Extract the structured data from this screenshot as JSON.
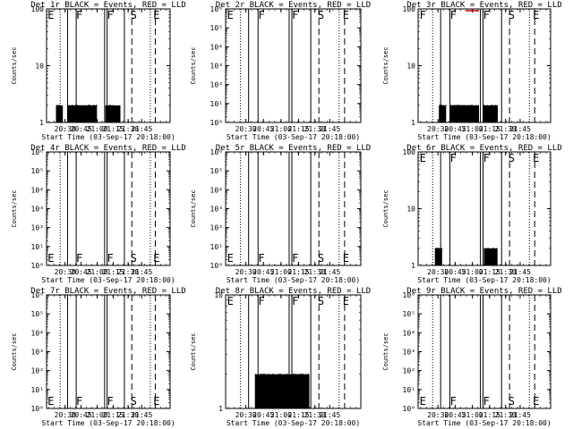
{
  "figure": {
    "description": "RHESSI detector count rates, 3x3 grid"
  },
  "chart_data": [
    {
      "type": "line",
      "title": "Det 1r BLACK = Events, RED = LLD",
      "xlabel": "Start Time (03-Sep-17 20:18:00)",
      "ylabel": "Counts/sec",
      "x_ticks": [
        "20:30",
        "20:45",
        "21:00",
        "21:15",
        "21:30",
        "21:45"
      ],
      "y_scale": "log",
      "ylim": [
        1,
        100
      ],
      "y_ticks": [
        "1",
        "10",
        "100"
      ],
      "flags": [
        "E",
        "F",
        "F",
        "S",
        "E"
      ],
      "events_level": 2,
      "events_segments": [
        [
          0.08,
          0.13
        ],
        [
          0.17,
          0.41
        ],
        [
          0.48,
          0.6
        ]
      ],
      "lld_visible": false
    },
    {
      "type": "line",
      "title": "Det 2r BLACK = Events, RED = LLD",
      "xlabel": "Start Time (03-Sep-17 20:18:00)",
      "ylabel": "Counts/sec",
      "x_ticks": [
        "20:30",
        "20:45",
        "21:00",
        "21:15",
        "21:30",
        "21:45"
      ],
      "y_scale": "log",
      "ylim": [
        1,
        1000000
      ],
      "y_ticks": [
        "10⁰",
        "10¹",
        "10²",
        "10³",
        "10⁴",
        "10⁵",
        "10⁶"
      ],
      "flags": [
        "E",
        "F",
        "F",
        "S",
        "E"
      ],
      "events_level": 0,
      "events_segments": [],
      "lld_visible": false
    },
    {
      "type": "line",
      "title": "Det 3r BLACK = Events, RED = LLD",
      "xlabel": "Start Time (03-Sep-17 20:18:00)",
      "ylabel": "Counts/sec",
      "x_ticks": [
        "20:30",
        "20:45",
        "21:00",
        "21:15",
        "21:30",
        "21:45"
      ],
      "y_scale": "log",
      "ylim": [
        1,
        100
      ],
      "y_ticks": [
        "1",
        "10",
        "100"
      ],
      "flags": [
        "F",
        "F",
        "F",
        "S",
        "E"
      ],
      "events_level": 2,
      "events_segments": [
        [
          0.16,
          0.21
        ],
        [
          0.24,
          0.46
        ],
        [
          0.49,
          0.6
        ]
      ],
      "lld_visible": true,
      "lld_segment": [
        0.36,
        0.46
      ]
    },
    {
      "type": "line",
      "title": "Det 4r BLACK = Events, RED = LLD",
      "xlabel": "Start Time (03-Sep-17 20:18:00)",
      "ylabel": "Counts/sec",
      "x_ticks": [
        "20:30",
        "20:45",
        "21:00",
        "21:15",
        "21:30",
        "21:45"
      ],
      "y_scale": "log",
      "ylim": [
        1,
        1000000
      ],
      "y_ticks": [
        "10⁰",
        "10¹",
        "10²",
        "10³",
        "10⁴",
        "10⁵",
        "10⁶"
      ],
      "flags": [
        "E",
        "F",
        "F",
        "S",
        "E"
      ],
      "events_level": 0,
      "events_segments": [],
      "lld_visible": false
    },
    {
      "type": "line",
      "title": "Det 5r BLACK = Events, RED = LLD",
      "xlabel": "Start Time (03-Sep-17 20:18:00)",
      "ylabel": "Counts/sec",
      "x_ticks": [
        "20:30",
        "20:45",
        "21:00",
        "21:15",
        "21:30",
        "21:45"
      ],
      "y_scale": "log",
      "ylim": [
        1,
        1000000
      ],
      "y_ticks": [
        "10⁰",
        "10¹",
        "10²",
        "10³",
        "10⁴",
        "10⁵",
        "10⁶"
      ],
      "flags": [
        "E",
        "F",
        "F",
        "S",
        "E"
      ],
      "events_level": 0,
      "events_segments": [],
      "lld_visible": false
    },
    {
      "type": "line",
      "title": "Det 6r BLACK = Events, RED = LLD",
      "xlabel": "Start Time (03-Sep-17 20:18:00)",
      "ylabel": "Counts/sec",
      "x_ticks": [
        "20:30",
        "20:45",
        "21:00",
        "21:15",
        "21:30",
        "21:45"
      ],
      "y_scale": "log",
      "ylim": [
        1,
        100
      ],
      "y_ticks": [
        "1",
        "10",
        "100"
      ],
      "flags": [
        "E",
        "F",
        "F",
        "S",
        "E"
      ],
      "events_level": 2,
      "events_segments": [
        [
          0.13,
          0.18
        ],
        [
          0.5,
          0.6
        ]
      ],
      "lld_visible": false
    },
    {
      "type": "line",
      "title": "Det 7r BLACK = Events, RED = LLD",
      "xlabel": "Start Time (03-Sep-17 20:18:00)",
      "ylabel": "Counts/sec",
      "x_ticks": [
        "20:30",
        "20:45",
        "21:00",
        "21:15",
        "21:30",
        "21:45"
      ],
      "y_scale": "log",
      "ylim": [
        1,
        1000000
      ],
      "y_ticks": [
        "10⁰",
        "10¹",
        "10²",
        "10³",
        "10⁴",
        "10⁵",
        "10⁶"
      ],
      "flags": [
        "E",
        "F",
        "F",
        "S",
        "E"
      ],
      "events_level": 0,
      "events_segments": [],
      "lld_visible": false
    },
    {
      "type": "line",
      "title": "Det 8r BLACK = Events, RED = LLD",
      "xlabel": "Start Time (03-Sep-17 20:18:00)",
      "ylabel": "Counts/sec",
      "x_ticks": [
        "20:30",
        "20:45",
        "21:00",
        "21:15",
        "21:30",
        "21:45"
      ],
      "y_scale": "log",
      "ylim": [
        1,
        10
      ],
      "y_ticks": [
        "1",
        "10"
      ],
      "flags": [
        "E",
        "F",
        "F",
        "S",
        "E"
      ],
      "events_level": 2,
      "events_segments": [
        [
          0.22,
          0.62
        ]
      ],
      "lld_visible": false
    },
    {
      "type": "line",
      "title": "Det 9r BLACK = Events, RED = LLD",
      "xlabel": "Start Time (03-Sep-17 20:18:00)",
      "ylabel": "Counts/sec",
      "x_ticks": [
        "20:30",
        "20:45",
        "21:00",
        "21:15",
        "21:30",
        "21:45"
      ],
      "y_scale": "log",
      "ylim": [
        1,
        1000000
      ],
      "y_ticks": [
        "10⁰",
        "10¹",
        "10²",
        "10³",
        "10⁴",
        "10⁵",
        "10⁶"
      ],
      "flags": [
        "E",
        "F",
        "F",
        "S",
        "E"
      ],
      "events_level": 0,
      "events_segments": [],
      "lld_visible": false
    }
  ]
}
